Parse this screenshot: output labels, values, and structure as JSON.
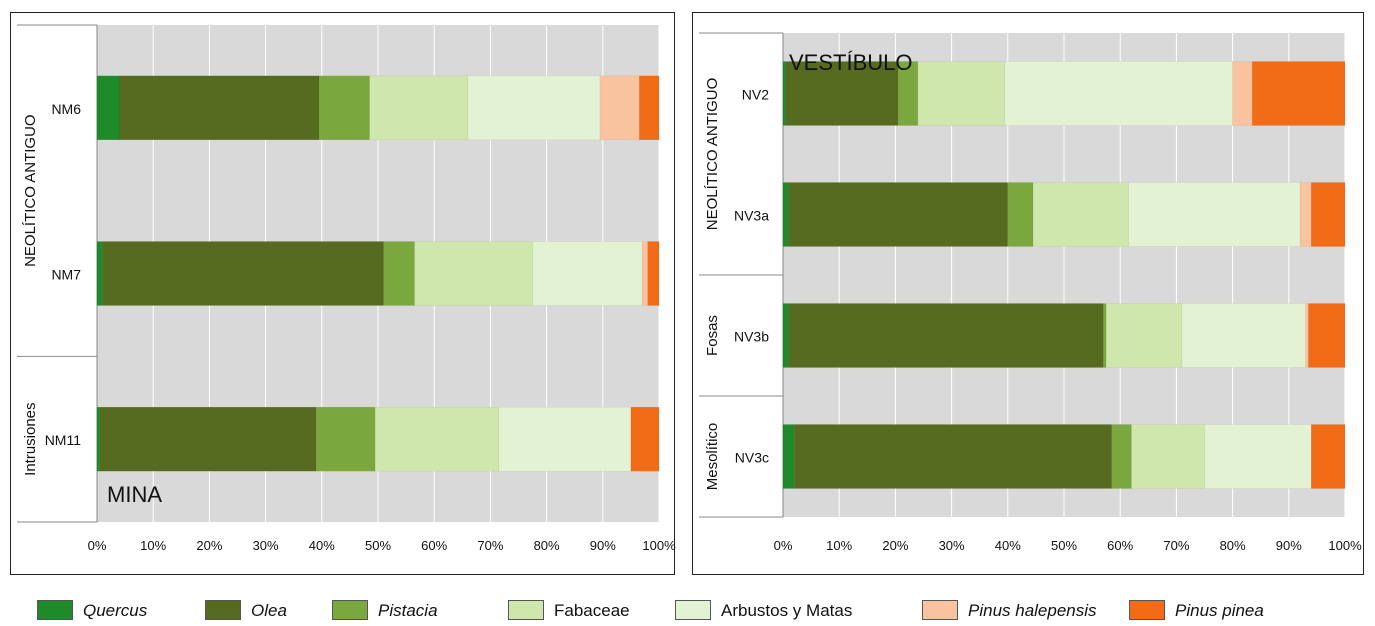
{
  "chart_data": [
    {
      "type": "bar",
      "orientation": "horizontal",
      "stacked": "percent",
      "label": "MINA",
      "categories": [
        "NM6",
        "NM7",
        "NM11"
      ],
      "groups": [
        {
          "name": "NEOLÍTICO ANTIGUO",
          "categories": [
            "NM6",
            "NM7"
          ]
        },
        {
          "name": "Intrusiones",
          "categories": [
            "NM11"
          ]
        }
      ],
      "series": [
        {
          "name": "Quercus",
          "values": [
            4,
            1,
            0.5
          ]
        },
        {
          "name": "Olea",
          "values": [
            35.5,
            50,
            38.5
          ]
        },
        {
          "name": "Pistacia",
          "values": [
            9,
            5.5,
            10.5
          ]
        },
        {
          "name": "Fabaceae",
          "values": [
            17.5,
            21,
            22
          ]
        },
        {
          "name": "Arbustos y Matas",
          "values": [
            23.5,
            19.5,
            23.5
          ]
        },
        {
          "name": "Pinus halepensis",
          "values": [
            7,
            1,
            0
          ]
        },
        {
          "name": "Pinus pinea",
          "values": [
            3.5,
            2,
            5
          ]
        }
      ],
      "xlim": [
        0,
        100
      ],
      "xticks": [
        "0%",
        "10%",
        "20%",
        "30%",
        "40%",
        "50%",
        "60%",
        "70%",
        "80%",
        "90%",
        "100%"
      ],
      "grid": true
    },
    {
      "type": "bar",
      "orientation": "horizontal",
      "stacked": "percent",
      "label": "VESTÍBULO",
      "categories": [
        "NV2",
        "NV3a",
        "NV3b",
        "NV3c"
      ],
      "groups": [
        {
          "name": "NEOLÍTICO ANTIGUO",
          "categories": [
            "NV2",
            "NV3a"
          ]
        },
        {
          "name": "Fosas",
          "categories": [
            "NV3b"
          ]
        },
        {
          "name": "Mesolítico",
          "categories": [
            "NV3c"
          ]
        }
      ],
      "series": [
        {
          "name": "Quercus",
          "values": [
            0.5,
            1,
            1,
            2
          ]
        },
        {
          "name": "Olea",
          "values": [
            20,
            39,
            56,
            56.5
          ]
        },
        {
          "name": "Pistacia",
          "values": [
            3.5,
            4.5,
            0.5,
            3.5
          ]
        },
        {
          "name": "Fabaceae",
          "values": [
            15.5,
            17,
            13.5,
            13
          ]
        },
        {
          "name": "Arbustos y Matas",
          "values": [
            40.5,
            30.5,
            22,
            19
          ]
        },
        {
          "name": "Pinus halepensis",
          "values": [
            3.5,
            2,
            0.5,
            0
          ]
        },
        {
          "name": "Pinus pinea",
          "values": [
            16.5,
            6,
            6.5,
            6
          ]
        }
      ],
      "xlim": [
        0,
        100
      ],
      "xticks": [
        "0%",
        "10%",
        "20%",
        "30%",
        "40%",
        "50%",
        "60%",
        "70%",
        "80%",
        "90%",
        "100%"
      ],
      "grid": true
    }
  ],
  "legend": [
    {
      "name": "Quercus",
      "color": "#1f8a2a",
      "italic": true
    },
    {
      "name": "Olea",
      "color": "#566b1f",
      "italic": true
    },
    {
      "name": "Pistacia",
      "color": "#7aa83e",
      "italic": true
    },
    {
      "name": "Fabaceae",
      "color": "#cfe6ad",
      "italic": false
    },
    {
      "name": "Arbustos y Matas",
      "color": "#e3f2d2",
      "italic": false
    },
    {
      "name": "Pinus halepensis",
      "color": "#f9c3a0",
      "italic": true
    },
    {
      "name": "Pinus pinea",
      "color": "#f26c17",
      "italic": true
    }
  ]
}
